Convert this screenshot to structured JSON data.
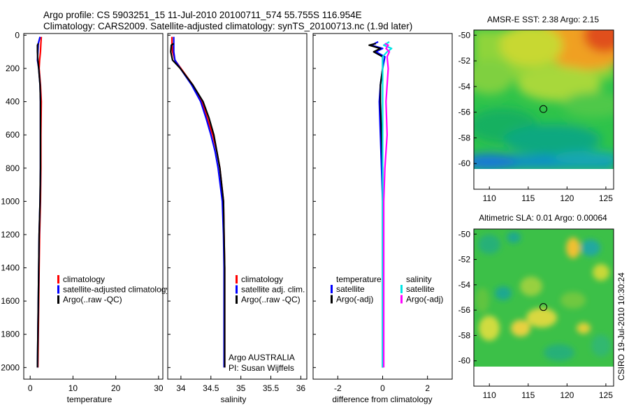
{
  "title_line1": "Argo profile: CS 5903251_15 11-Jul-2010 20100711_574 55.755S 116.954E",
  "title_line2": "Climatology: CARS2009. Satellite-adjusted climatology: synTS_20100713.nc (1.9d later)",
  "credit": "CSIRO 19-Jul-2010 10:30:24",
  "colors": {
    "climatology": "#ff0000",
    "satellite": "#0000ff",
    "argo": "#000000",
    "satellite_salinity_diff": "#00e5e5",
    "argo_salinity_diff": "#ff00ff"
  },
  "chart_data": [
    {
      "type": "line",
      "id": "temperature",
      "xlabel": "temperature",
      "ylabel": "",
      "xlim": [
        -1.5,
        31
      ],
      "ylim": [
        2070,
        -10
      ],
      "xticks": [
        0,
        10,
        20,
        30
      ],
      "yticks": [
        0,
        200,
        400,
        600,
        800,
        1000,
        1200,
        1400,
        1600,
        1800,
        2000
      ],
      "legend": [
        "climatology",
        "satellite-adjusted climatology",
        "Argo(..raw -QC)"
      ],
      "series": [
        {
          "name": "climatology",
          "color": "#ff0000",
          "depth": [
            10,
            50,
            100,
            150,
            200,
            300,
            400,
            600,
            800,
            1000,
            1200,
            1400,
            1600,
            1800,
            2000
          ],
          "values": [
            2.6,
            2.5,
            2.4,
            2.2,
            2.1,
            2.4,
            2.6,
            2.5,
            2.5,
            2.4,
            2.2,
            2.1,
            2.0,
            1.9,
            1.8
          ]
        },
        {
          "name": "satellite-adjusted climatology",
          "color": "#0000ff",
          "depth": [
            10,
            50,
            100,
            150,
            200,
            300,
            400,
            600,
            800,
            1000,
            1200,
            1400,
            1600,
            1800,
            2000
          ],
          "values": [
            2.3,
            1.9,
            1.8,
            1.7,
            2.0,
            2.3,
            2.4,
            2.4,
            2.4,
            2.3,
            2.1,
            2.0,
            1.9,
            1.8,
            1.7
          ]
        },
        {
          "name": "Argo(..raw -QC)",
          "color": "#000000",
          "depth": [
            50,
            60,
            100,
            150,
            200,
            300,
            400,
            600,
            800,
            1000,
            1200,
            1400,
            1600,
            1800,
            2000
          ],
          "values": [
            1.9,
            1.7,
            1.7,
            1.8,
            2.0,
            2.3,
            2.4,
            2.4,
            2.4,
            2.3,
            2.1,
            2.0,
            1.9,
            1.8,
            1.7
          ]
        }
      ]
    },
    {
      "type": "line",
      "id": "salinity",
      "xlabel": "salinity",
      "ylabel": "",
      "xlim": [
        33.78,
        36.1
      ],
      "ylim": [
        2070,
        -10
      ],
      "xticks": [
        34,
        34.5,
        35,
        35.5,
        36
      ],
      "legend": [
        "climatology",
        "satellite adj. clim.",
        "Argo(..raw -QC)"
      ],
      "annotation": [
        "Argo AUSTRALIA",
        "PI: Susan Wijffels"
      ],
      "series": [
        {
          "name": "climatology",
          "color": "#ff0000",
          "depth": [
            10,
            50,
            100,
            150,
            200,
            300,
            400,
            500,
            600,
            700,
            800,
            1000,
            1200,
            1400,
            1600,
            1800,
            2000
          ],
          "values": [
            33.85,
            33.85,
            33.86,
            33.9,
            34.0,
            34.2,
            34.35,
            34.44,
            34.53,
            34.6,
            34.65,
            34.71,
            34.72,
            34.73,
            34.73,
            34.73,
            34.73
          ]
        },
        {
          "name": "satellite adj. clim.",
          "color": "#0000ff",
          "depth": [
            10,
            50,
            100,
            150,
            200,
            300,
            400,
            500,
            600,
            700,
            800,
            1000,
            1200,
            1400,
            1600,
            1800,
            2000
          ],
          "values": [
            33.88,
            33.88,
            33.88,
            33.9,
            33.99,
            34.18,
            34.33,
            34.42,
            34.5,
            34.57,
            34.62,
            34.69,
            34.71,
            34.72,
            34.72,
            34.72,
            34.72
          ]
        },
        {
          "name": "Argo(..raw -QC)",
          "color": "#000000",
          "depth": [
            50,
            60,
            100,
            150,
            200,
            300,
            400,
            500,
            600,
            700,
            800,
            1000,
            1200,
            1400,
            1600,
            1800,
            2000
          ],
          "values": [
            33.88,
            33.84,
            33.83,
            33.86,
            33.99,
            34.2,
            34.37,
            34.47,
            34.55,
            34.6,
            34.65,
            34.71,
            34.72,
            34.73,
            34.73,
            34.73,
            34.73
          ]
        }
      ]
    },
    {
      "type": "line",
      "id": "difference",
      "xlabel": "difference from climatology",
      "ylabel": "",
      "xlim": [
        -3.1,
        3.1
      ],
      "ylim": [
        2070,
        -10
      ],
      "xticks": [
        -2,
        0,
        2
      ],
      "legend_groups": [
        {
          "heading": "temperature",
          "items": [
            "satellite",
            "Argo(-adj)"
          ]
        },
        {
          "heading": "salinity",
          "items": [
            "satellite",
            "Argo(-adj)"
          ]
        }
      ],
      "series": [
        {
          "name": "temperature satellite",
          "color": "#0000ff",
          "depth": [
            40,
            60,
            80,
            100,
            130,
            200,
            300,
            400,
            600,
            800,
            1000,
            1400,
            1800,
            2000
          ],
          "values": [
            -0.2,
            -0.5,
            0.0,
            -0.3,
            0.1,
            0.0,
            -0.1,
            -0.15,
            -0.1,
            -0.05,
            0.0,
            0.0,
            0.0,
            0.0
          ]
        },
        {
          "name": "temperature Argo(-adj)",
          "color": "#000000",
          "depth": [
            50,
            60,
            80,
            100,
            130,
            200,
            300,
            400,
            600,
            800,
            1000,
            1400,
            1800,
            2000
          ],
          "values": [
            -0.3,
            -0.6,
            -0.1,
            -0.4,
            0.0,
            0.0,
            -0.1,
            -0.1,
            -0.05,
            0.0,
            0.0,
            0.0,
            0.0,
            0.0
          ]
        },
        {
          "name": "salinity satellite",
          "color": "#00e5e5",
          "depth": [
            40,
            60,
            80,
            100,
            130,
            200,
            300,
            400,
            600,
            800,
            1000,
            1400,
            1800,
            2000
          ],
          "values": [
            0.3,
            0.05,
            0.4,
            0.2,
            0.0,
            0.0,
            0.0,
            0.0,
            0.0,
            0.0,
            0.0,
            0.0,
            0.0,
            0.0
          ]
        },
        {
          "name": "salinity Argo(-adj)",
          "color": "#ff00ff",
          "depth": [
            50,
            60,
            80,
            100,
            130,
            200,
            300,
            400,
            600,
            800,
            1000,
            1400,
            1800,
            2000
          ],
          "values": [
            0.1,
            0.25,
            0.15,
            0.3,
            0.2,
            0.25,
            0.2,
            0.15,
            0.2,
            0.1,
            0.05,
            0.05,
            0.05,
            0.05
          ]
        }
      ]
    },
    {
      "type": "heatmap",
      "id": "sst_map",
      "title": "AMSR-E SST: 2.38 Argo: 2.15",
      "xlim": [
        108,
        126
      ],
      "ylim": [
        -62,
        -49.6
      ],
      "xticks": [
        110,
        115,
        120,
        125
      ],
      "yticks": [
        -50,
        -52,
        -54,
        -56,
        -58,
        -60
      ],
      "marker": {
        "lon": 116.954,
        "lat": -55.755
      }
    },
    {
      "type": "heatmap",
      "id": "sla_map",
      "title": "Altimetric SLA: 0.01 Argo: 0.00064",
      "xlim": [
        108,
        126
      ],
      "ylim": [
        -62,
        -49.6
      ],
      "xticks": [
        110,
        115,
        120,
        125
      ],
      "yticks": [
        -50,
        -52,
        -54,
        -56,
        -58,
        -60
      ],
      "marker": {
        "lon": 116.954,
        "lat": -55.755
      }
    }
  ]
}
